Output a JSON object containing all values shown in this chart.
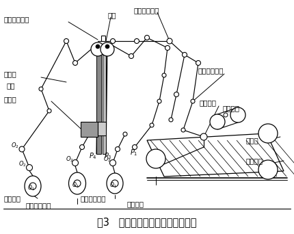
{
  "title": "图3   供袋部件的机构分析简化模型",
  "title_fontsize": 10.5,
  "bg_color": "#ffffff",
  "labels": {
    "jiajia_tisheng": "夹袋提升机构",
    "chilun": "齿轮",
    "erci_shangbao": "二次上袋机构",
    "jiachiqiqi": "夹持器",
    "qianshuo": "钳手",
    "gongxupan": "工序盘",
    "yici_shangbao": "一次上袋机构",
    "zhenkong_xipan": "真空吸盘",
    "saodaipeidai": "扫袋皮带",
    "yuzhibao": "预制袋",
    "gongbao_pingtai": "供袋平台",
    "songbao_peidai": "送袋皮带",
    "jiabao_tulun": "夹袋凸轮",
    "erci_shangbao_tulun": "二次上袋凸轮",
    "yici_shangbao_tulun": "一次上袋凸轮"
  }
}
